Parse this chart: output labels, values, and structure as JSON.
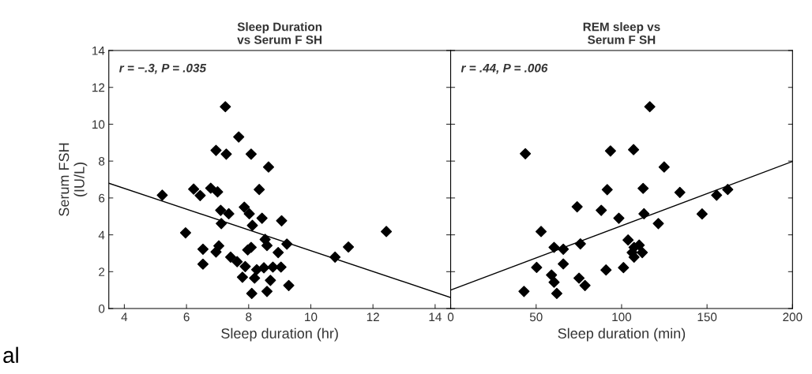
{
  "chart_data": [
    {
      "type": "scatter",
      "title": "Sleep Duration\nvs Serum F SH",
      "xlabel": "Sleep duration (hr)",
      "ylabel": "Serum FSH\n(IU/L)",
      "annotations": [
        "r = −.3, P = .035",
        "al"
      ],
      "grid": false,
      "legend": false,
      "xlim": [
        3.5,
        14.5
      ],
      "xticks": [
        4,
        6,
        8,
        10,
        12,
        14
      ],
      "ylim": [
        0,
        14
      ],
      "yticks": [
        0,
        2,
        4,
        6,
        8,
        10,
        12,
        14
      ],
      "series": [
        {
          "color": "#000000",
          "marker": "diamond",
          "x": [
            7.25,
            7.68,
            6.95,
            7.28,
            8.08,
            8.64,
            5.22,
            6.23,
            6.44,
            6.78,
            7.0,
            8.34,
            7.1,
            7.36,
            7.86,
            8.02,
            7.12,
            8.43,
            9.06,
            8.12,
            5.97,
            8.53,
            8.59,
            9.23,
            10.78,
            11.21,
            12.43,
            6.53,
            7.04,
            6.95,
            6.53,
            7.42,
            7.63,
            7.89,
            7.97,
            8.08,
            8.26,
            8.49,
            8.78,
            9.04,
            8.95,
            7.8,
            8.19,
            8.7,
            9.29,
            8.1,
            8.59
          ],
          "values": [
            10.95,
            9.31,
            8.58,
            8.38,
            8.38,
            7.68,
            6.15,
            6.48,
            6.13,
            6.53,
            6.33,
            6.46,
            5.33,
            5.14,
            5.5,
            5.14,
            4.61,
            4.9,
            4.76,
            4.51,
            4.11,
            3.75,
            3.42,
            3.5,
            2.79,
            3.34,
            4.18,
            3.22,
            3.4,
            3.07,
            2.41,
            2.79,
            2.54,
            2.28,
            3.18,
            3.32,
            2.11,
            2.21,
            2.25,
            2.25,
            3.04,
            1.7,
            1.65,
            1.53,
            1.25,
            0.82,
            0.93
          ]
        },
        {
          "type": "line",
          "marker": "none",
          "color": "#000000",
          "x": [
            3.5,
            14.5
          ],
          "values": [
            6.8,
            0.6
          ]
        }
      ]
    },
    {
      "type": "scatter",
      "title": "REM sleep vs\nSerum F SH",
      "xlabel": "Sleep duration (min)",
      "annotations": [
        "r = .44, P = .006"
      ],
      "grid": false,
      "legend": false,
      "tick_labels": "x",
      "xlim": [
        0,
        200
      ],
      "xticks": [
        0,
        50,
        100,
        150,
        200
      ],
      "ylim": [
        0,
        14
      ],
      "yticks": [
        0,
        2,
        4,
        6,
        8,
        10,
        12,
        14
      ],
      "series": [
        {
          "color": "#000000",
          "marker": "diamond",
          "x": [
            43.7,
            52.9,
            60.5,
            65.9,
            50.3,
            59.0,
            60.5,
            62.1,
            65.9,
            42.9,
            74.0,
            75.9,
            75.1,
            78.6,
            88.1,
            91.6,
            93.5,
            90.9,
            98.4,
            101.1,
            107.0,
            112.6,
            113.1,
            116.5,
            124.9,
            121.5,
            103.8,
            107.3,
            110.3,
            106.2,
            112.1,
            107.3,
            134.1,
            147.1,
            155.6,
            162.1
          ],
          "values": [
            8.4,
            4.18,
            3.32,
            3.22,
            2.23,
            1.82,
            1.43,
            0.82,
            2.42,
            0.93,
            5.52,
            3.51,
            1.65,
            1.25,
            5.33,
            6.45,
            8.55,
            2.09,
            4.9,
            2.22,
            8.62,
            6.52,
            5.14,
            10.95,
            7.68,
            4.61,
            3.72,
            3.32,
            3.44,
            3.04,
            3.04,
            2.79,
            6.3,
            5.13,
            6.15,
            6.46
          ]
        },
        {
          "type": "line",
          "marker": "none",
          "color": "#000000",
          "x": [
            0,
            200
          ],
          "values": [
            1.0,
            7.98
          ]
        }
      ]
    }
  ]
}
